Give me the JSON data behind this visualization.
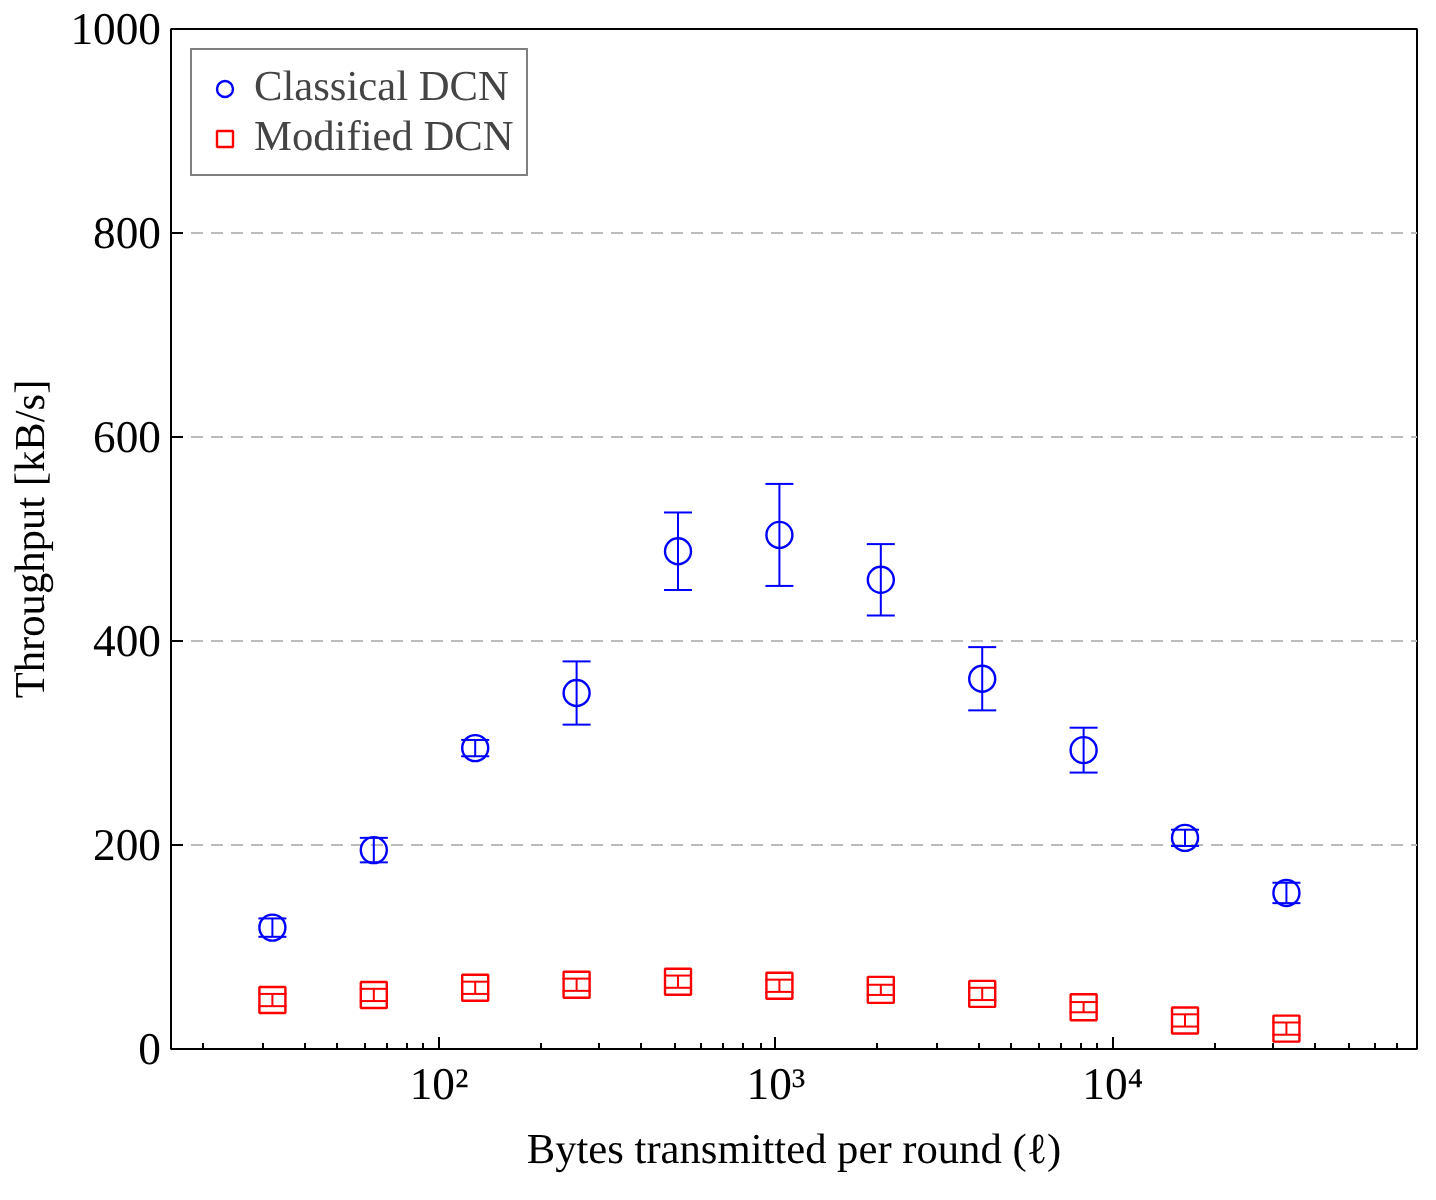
{
  "chart_data": {
    "type": "scatter",
    "xlabel": "Bytes transmitted per round (ℓ)",
    "ylabel": "Throughput [kB/s]",
    "x": [
      32,
      64,
      128,
      256,
      512,
      1024,
      2048,
      4096,
      8192,
      16384,
      32768
    ],
    "series": [
      {
        "name": "Classical DCN",
        "color": "#0000ff",
        "marker": "circle",
        "values": [
          119,
          195,
          295,
          349,
          488,
          504,
          460,
          363,
          293,
          207,
          153
        ],
        "errors": [
          9,
          12,
          8,
          31,
          38,
          50,
          35,
          31,
          22,
          8,
          10
        ]
      },
      {
        "name": "Modified DCN",
        "color": "#ff0000",
        "marker": "square",
        "values": [
          48,
          53,
          60,
          63,
          66,
          62,
          58,
          54,
          41,
          28,
          20
        ],
        "errors": [
          6,
          6,
          6,
          6,
          6,
          6,
          5,
          6,
          5,
          6,
          6
        ]
      }
    ],
    "log": "x",
    "xlim": [
      16,
      80000
    ],
    "ylim": [
      0,
      1000
    ],
    "xticks": [
      {
        "value": 100,
        "label": "10²"
      },
      {
        "value": 1000,
        "label": "10³"
      },
      {
        "value": 10000,
        "label": "10⁴"
      }
    ],
    "yticks": [
      0,
      200,
      400,
      600,
      800,
      1000
    ],
    "grid": "y",
    "legend": "top left"
  }
}
